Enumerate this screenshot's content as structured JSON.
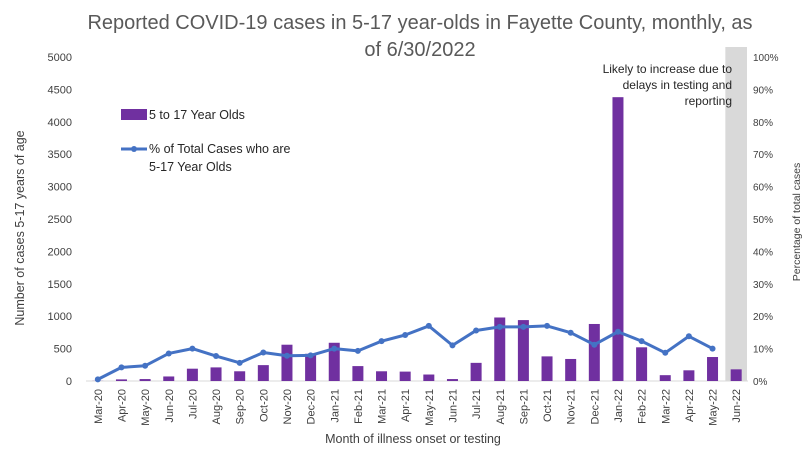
{
  "chart_data": {
    "type": "bar+line",
    "title_lines": [
      "Reported COVID-19 cases in 5-17 year-olds in Fayette County, monthly, as",
      "of 6/30/2022"
    ],
    "xlabel": "Month of illness onset or testing",
    "ylabel_left": "Number of cases 5-17 years of age",
    "ylabel_right": "Percentage of total cases",
    "ylim_left": [
      0,
      5000
    ],
    "yticks_left": [
      0,
      500,
      1000,
      1500,
      2000,
      2500,
      3000,
      3500,
      4000,
      4500,
      5000
    ],
    "ylim_right": [
      0,
      100
    ],
    "yticks_right": [
      "0%",
      "10%",
      "20%",
      "30%",
      "40%",
      "50%",
      "60%",
      "70%",
      "80%",
      "90%",
      "100%"
    ],
    "categories": [
      "Mar-20",
      "Apr-20",
      "May-20",
      "Jun-20",
      "Jul-20",
      "Aug-20",
      "Sep-20",
      "Oct-20",
      "Nov-20",
      "Dec-20",
      "Jan-21",
      "Feb-21",
      "Mar-21",
      "Apr-21",
      "May-21",
      "Jun-21",
      "Jul-21",
      "Aug-21",
      "Sep-21",
      "Oct-21",
      "Nov-21",
      "Dec-21",
      "Jan-22",
      "Feb-22",
      "Mar-22",
      "Apr-22",
      "May-22",
      "Jun-22"
    ],
    "series": [
      {
        "name": "5 to 17 Year Olds",
        "kind": "bar",
        "color": "#7030A0",
        "values": [
          2,
          25,
          30,
          70,
          190,
          210,
          150,
          245,
          560,
          420,
          590,
          230,
          150,
          145,
          100,
          30,
          280,
          980,
          940,
          380,
          340,
          880,
          4380,
          520,
          90,
          165,
          370,
          180
        ]
      },
      {
        "name": "% of Total Cases who are 5-17 Year Olds",
        "kind": "line",
        "color": "#4472C4",
        "values": [
          0.5,
          4.2,
          4.7,
          8.5,
          10,
          7.7,
          5.6,
          8.8,
          7.8,
          7.9,
          10,
          9.3,
          12.3,
          14.2,
          17,
          11,
          15.6,
          16.7,
          16.7,
          17,
          14.9,
          11.2,
          15.2,
          12.3,
          8.7,
          13.8,
          10,
          null
        ]
      }
    ],
    "highlight_category": "Jun-22",
    "highlight_color": "#D9D9D9",
    "annotation": [
      "Likely to increase due to",
      "delays in testing and",
      "reporting"
    ],
    "legend_placement": "top-left",
    "grid": false
  }
}
